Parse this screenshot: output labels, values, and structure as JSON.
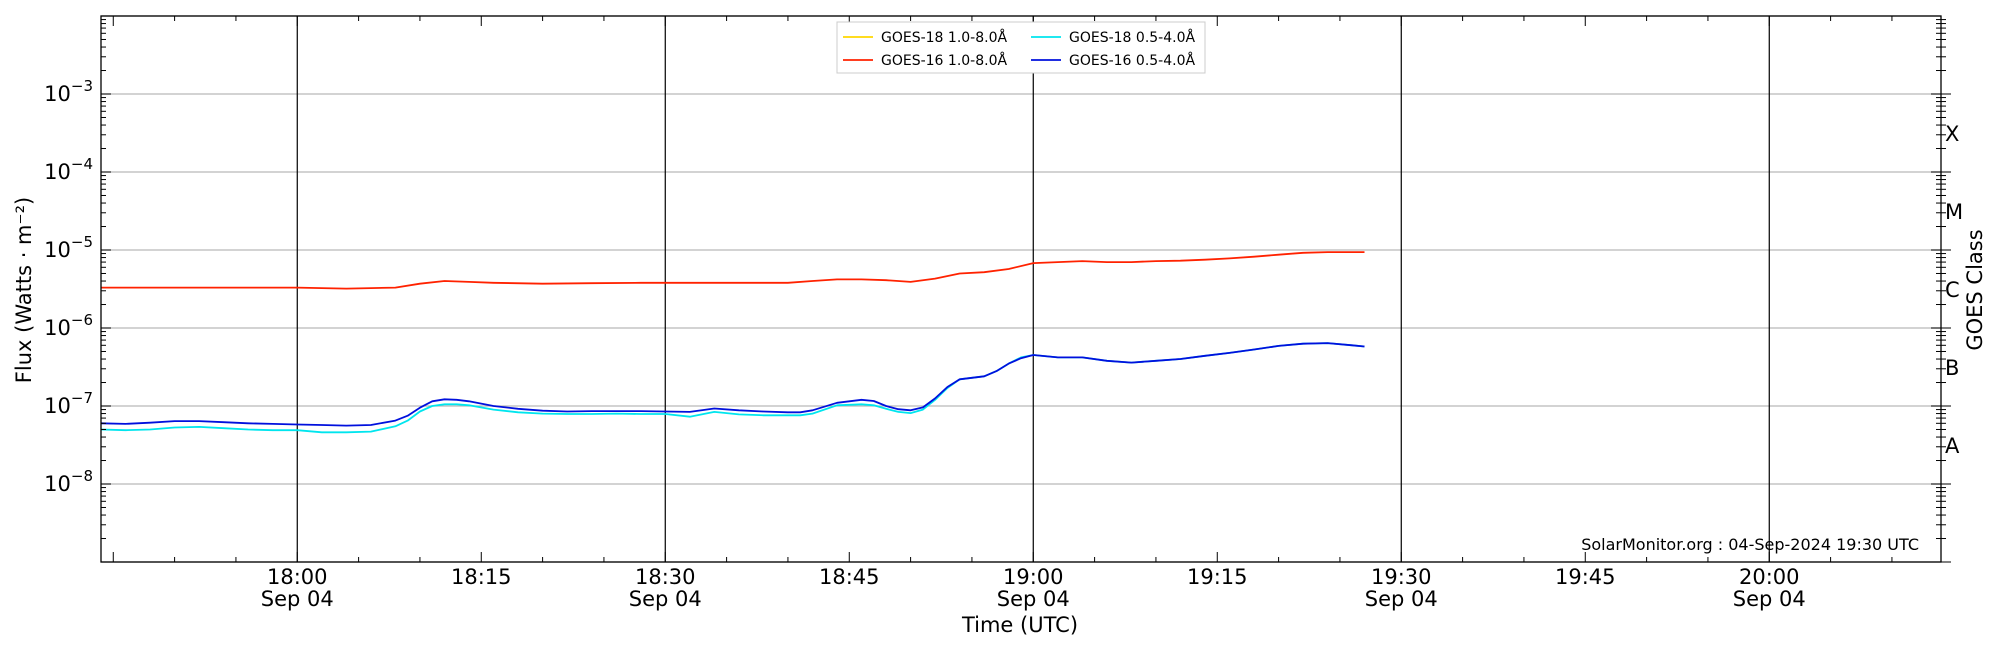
{
  "chart_data": {
    "type": "line",
    "xlabel": "Time (UTC)",
    "ylabel": "Flux (Watts · m⁻²)",
    "y_scale": "log",
    "ylim": [
      1e-09,
      0.01
    ],
    "x_range": [
      "17:44",
      "20:14"
    ],
    "x_ticks": [
      {
        "time": "18:00",
        "label": "18:00",
        "sublabel": "Sep 04",
        "major": true
      },
      {
        "time": "18:15",
        "label": "18:15",
        "sublabel": "",
        "major": false
      },
      {
        "time": "18:30",
        "label": "18:30",
        "sublabel": "Sep 04",
        "major": true
      },
      {
        "time": "18:45",
        "label": "18:45",
        "sublabel": "",
        "major": false
      },
      {
        "time": "19:00",
        "label": "19:00",
        "sublabel": "Sep 04",
        "major": true
      },
      {
        "time": "19:15",
        "label": "19:15",
        "sublabel": "",
        "major": false
      },
      {
        "time": "19:30",
        "label": "19:30",
        "sublabel": "Sep 04",
        "major": true
      },
      {
        "time": "19:45",
        "label": "19:45",
        "sublabel": "",
        "major": false
      },
      {
        "time": "20:00",
        "label": "20:00",
        "sublabel": "Sep 04",
        "major": true
      }
    ],
    "y_ticks": [
      {
        "value": 1e-08,
        "base": "10",
        "exp": "−8"
      },
      {
        "value": 1e-07,
        "base": "10",
        "exp": "−7"
      },
      {
        "value": 1e-06,
        "base": "10",
        "exp": "−6"
      },
      {
        "value": 1e-05,
        "base": "10",
        "exp": "−5"
      },
      {
        "value": 0.0001,
        "base": "10",
        "exp": "−4"
      },
      {
        "value": 0.001,
        "base": "10",
        "exp": "−3"
      }
    ],
    "grid": true,
    "legend_position": "top-center",
    "right_axis": {
      "title": "GOES Class",
      "classes": [
        {
          "label": "A",
          "value": 3.16e-08
        },
        {
          "label": "B",
          "value": 3.16e-07
        },
        {
          "label": "C",
          "value": 3.16e-06
        },
        {
          "label": "M",
          "value": 3.16e-05
        },
        {
          "label": "X",
          "value": 0.000316
        }
      ]
    },
    "credit": "SolarMonitor.org : 04-Sep-2024 19:30 UTC",
    "series": [
      {
        "name": "GOES-18 1.0-8.0Å",
        "color": "#ffd700",
        "x": [],
        "y": []
      },
      {
        "name": "GOES-16 1.0-8.0Å",
        "color": "#ff2200",
        "x": [
          "17:44",
          "17:48",
          "17:52",
          "17:56",
          "18:00",
          "18:04",
          "18:06",
          "18:08",
          "18:10",
          "18:12",
          "18:14",
          "18:16",
          "18:20",
          "18:24",
          "18:28",
          "18:32",
          "18:36",
          "18:40",
          "18:42",
          "18:44",
          "18:46",
          "18:48",
          "18:50",
          "18:52",
          "18:54",
          "18:56",
          "18:58",
          "19:00",
          "19:02",
          "19:04",
          "19:06",
          "19:08",
          "19:10",
          "19:12",
          "19:14",
          "19:16",
          "19:18",
          "19:20",
          "19:22",
          "19:24",
          "19:27"
        ],
        "y": [
          3.3e-06,
          3.3e-06,
          3.3e-06,
          3.3e-06,
          3.3e-06,
          3.2e-06,
          3.25e-06,
          3.3e-06,
          3.7e-06,
          4e-06,
          3.9e-06,
          3.8e-06,
          3.7e-06,
          3.75e-06,
          3.8e-06,
          3.8e-06,
          3.8e-06,
          3.8e-06,
          4e-06,
          4.2e-06,
          4.2e-06,
          4.1e-06,
          3.9e-06,
          4.3e-06,
          5e-06,
          5.2e-06,
          5.7e-06,
          6.8e-06,
          7e-06,
          7.2e-06,
          7e-06,
          7e-06,
          7.2e-06,
          7.3e-06,
          7.5e-06,
          7.8e-06,
          8.2e-06,
          8.7e-06,
          9.2e-06,
          9.4e-06,
          9.4e-06
        ]
      },
      {
        "name": "GOES-18 0.5-4.0Å",
        "color": "#00e5ee",
        "x": [
          "17:44",
          "17:46",
          "17:48",
          "17:50",
          "17:52",
          "17:54",
          "17:56",
          "17:58",
          "18:00",
          "18:02",
          "18:04",
          "18:06",
          "18:08",
          "18:09",
          "18:10",
          "18:11",
          "18:12",
          "18:13",
          "18:14",
          "18:16",
          "18:18",
          "18:20",
          "18:22",
          "18:24",
          "18:26",
          "18:28",
          "18:30",
          "18:32",
          "18:34",
          "18:36",
          "18:38",
          "18:40",
          "18:41",
          "18:42",
          "18:44",
          "18:46",
          "18:47",
          "18:48",
          "18:49",
          "18:50",
          "18:51",
          "18:52",
          "18:53",
          "18:54",
          "18:55",
          "18:56",
          "18:57",
          "18:58",
          "18:59",
          "19:00",
          "19:02",
          "19:04",
          "19:06",
          "19:08",
          "19:10",
          "19:12",
          "19:14",
          "19:16",
          "19:18",
          "19:20",
          "19:22",
          "19:24",
          "19:26",
          "19:27"
        ],
        "y": [
          5e-08,
          4.9e-08,
          5e-08,
          5.3e-08,
          5.4e-08,
          5.2e-08,
          5e-08,
          4.9e-08,
          4.9e-08,
          4.6e-08,
          4.6e-08,
          4.7e-08,
          5.5e-08,
          6.5e-08,
          8.5e-08,
          1e-07,
          1.05e-07,
          1.05e-07,
          1.02e-07,
          9e-08,
          8.3e-08,
          8e-08,
          7.9e-08,
          7.9e-08,
          8e-08,
          7.9e-08,
          7.9e-08,
          7.3e-08,
          8.4e-08,
          7.8e-08,
          7.6e-08,
          7.6e-08,
          7.6e-08,
          8e-08,
          1.02e-07,
          1.05e-07,
          1.02e-07,
          9.2e-08,
          8.4e-08,
          8.1e-08,
          9e-08,
          1.2e-07,
          1.7e-07,
          2.2e-07,
          2.3e-07,
          2.4e-07,
          2.8e-07,
          3.5e-07,
          4.2e-07,
          4.5e-07,
          4.2e-07,
          4.2e-07,
          3.8e-07,
          3.6e-07,
          3.8e-07,
          4e-07,
          4.4e-07,
          4.8e-07,
          5.3e-07,
          5.9e-07,
          6.3e-07,
          6.4e-07,
          6e-07,
          5.8e-07
        ]
      },
      {
        "name": "GOES-16 0.5-4.0Å",
        "color": "#0010dd",
        "x": [
          "17:44",
          "17:46",
          "17:48",
          "17:50",
          "17:52",
          "17:54",
          "17:56",
          "17:58",
          "18:00",
          "18:02",
          "18:04",
          "18:06",
          "18:08",
          "18:09",
          "18:10",
          "18:11",
          "18:12",
          "18:13",
          "18:14",
          "18:16",
          "18:18",
          "18:20",
          "18:22",
          "18:24",
          "18:26",
          "18:28",
          "18:30",
          "18:32",
          "18:34",
          "18:36",
          "18:38",
          "18:40",
          "18:41",
          "18:42",
          "18:44",
          "18:46",
          "18:47",
          "18:48",
          "18:49",
          "18:50",
          "18:51",
          "18:52",
          "18:53",
          "18:54",
          "18:55",
          "18:56",
          "18:57",
          "18:58",
          "18:59",
          "19:00",
          "19:02",
          "19:04",
          "19:06",
          "19:08",
          "19:10",
          "19:12",
          "19:14",
          "19:16",
          "19:18",
          "19:20",
          "19:22",
          "19:24",
          "19:26",
          "19:27"
        ],
        "y": [
          6e-08,
          5.9e-08,
          6.1e-08,
          6.4e-08,
          6.4e-08,
          6.2e-08,
          6e-08,
          5.9e-08,
          5.8e-08,
          5.7e-08,
          5.6e-08,
          5.7e-08,
          6.5e-08,
          7.5e-08,
          9.5e-08,
          1.15e-07,
          1.22e-07,
          1.2e-07,
          1.15e-07,
          1e-07,
          9.2e-08,
          8.7e-08,
          8.5e-08,
          8.6e-08,
          8.6e-08,
          8.6e-08,
          8.5e-08,
          8.4e-08,
          9.3e-08,
          8.8e-08,
          8.5e-08,
          8.3e-08,
          8.3e-08,
          8.8e-08,
          1.1e-07,
          1.2e-07,
          1.16e-07,
          1e-07,
          9.1e-08,
          8.8e-08,
          9.6e-08,
          1.25e-07,
          1.75e-07,
          2.2e-07,
          2.3e-07,
          2.4e-07,
          2.8e-07,
          3.5e-07,
          4.1e-07,
          4.5e-07,
          4.2e-07,
          4.2e-07,
          3.8e-07,
          3.6e-07,
          3.8e-07,
          4e-07,
          4.4e-07,
          4.8e-07,
          5.3e-07,
          5.9e-07,
          6.3e-07,
          6.4e-07,
          6e-07,
          5.8e-07
        ]
      }
    ]
  }
}
